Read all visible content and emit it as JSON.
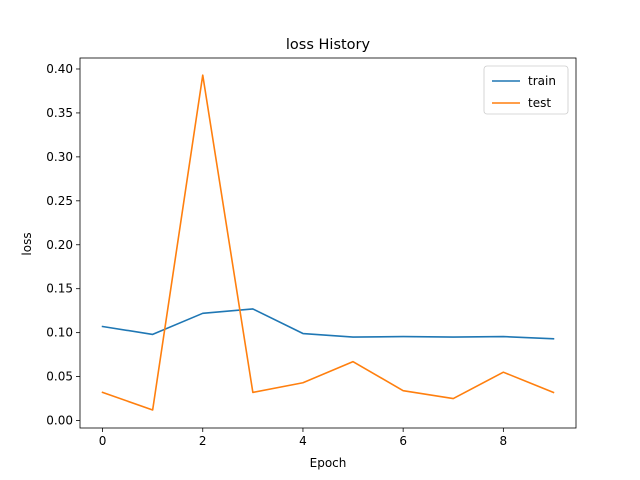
{
  "chart_data": {
    "type": "line",
    "title": "loss History",
    "xlabel": "Epoch",
    "ylabel": "loss",
    "x": [
      0,
      1,
      2,
      3,
      4,
      5,
      6,
      7,
      8,
      9
    ],
    "xlim": [
      -0.45,
      9.45
    ],
    "ylim": [
      -0.0085,
      0.4125
    ],
    "xticks": [
      0,
      2,
      4,
      6,
      8
    ],
    "yticks": [
      0.0,
      0.05,
      0.1,
      0.15,
      0.2,
      0.25,
      0.3,
      0.35,
      0.4
    ],
    "ytick_labels": [
      "0.00",
      "0.05",
      "0.10",
      "0.15",
      "0.20",
      "0.25",
      "0.30",
      "0.35",
      "0.40"
    ],
    "grid": false,
    "legend_position": "top-right",
    "series": [
      {
        "name": "train",
        "color": "#1f77b4",
        "values": [
          0.107,
          0.098,
          0.122,
          0.127,
          0.099,
          0.095,
          0.0955,
          0.095,
          0.0955,
          0.093
        ]
      },
      {
        "name": "test",
        "color": "#ff7f0e",
        "values": [
          0.032,
          0.012,
          0.393,
          0.032,
          0.043,
          0.067,
          0.034,
          0.025,
          0.055,
          0.032
        ]
      }
    ]
  }
}
